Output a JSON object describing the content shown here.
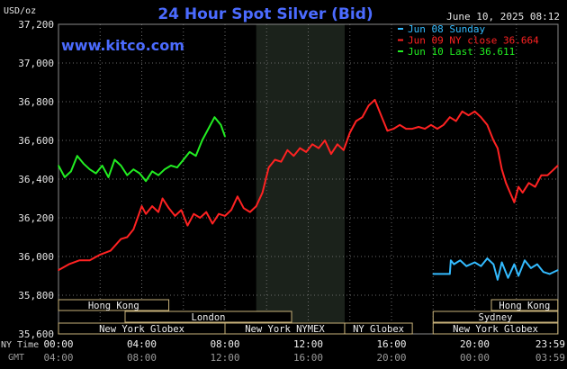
{
  "header": {
    "title": "24 Hour Spot Silver (Bid)",
    "watermark": "www.kitco.com",
    "timestamp": "June 10, 2025 08:12",
    "unit": "USD/oz"
  },
  "chart_data": {
    "type": "line",
    "title": "24 Hour Spot Silver (Bid)",
    "ylabel": "USD/oz",
    "ylim": [
      35.6,
      37.2
    ],
    "y_ticks": [
      "37,200",
      "37,000",
      "36,800",
      "36,600",
      "36,400",
      "36,200",
      "36,000",
      "35,800",
      "35,600"
    ],
    "y_tick_values": [
      37.2,
      37.0,
      36.8,
      36.6,
      36.4,
      36.2,
      36.0,
      35.8,
      35.6
    ],
    "xlim": [
      0,
      24
    ],
    "x_tick_hours": [
      0,
      4,
      8,
      12,
      16,
      20,
      24
    ],
    "x_ticks_ny": [
      "00:00",
      "04:00",
      "08:00",
      "12:00",
      "16:00",
      "20:00",
      "23:59"
    ],
    "x_ticks_gmt": [
      "04:00",
      "08:00",
      "12:00",
      "16:00",
      "20:00",
      "00:00",
      "03:59"
    ],
    "x_row_labels": {
      "ny": "NY Time",
      "gmt": "GMT"
    },
    "grid": true,
    "legend_position": "top-right",
    "shaded_hours": [
      9.5,
      13.75
    ],
    "series": [
      {
        "name": "Jun 08 Sunday",
        "color": "#33bbff",
        "x": [
          18.0,
          18.8,
          18.85,
          19.0,
          19.3,
          19.6,
          20.0,
          20.3,
          20.6,
          20.9,
          21.1,
          21.3,
          21.6,
          21.9,
          22.1,
          22.4,
          22.7,
          23.0,
          23.3,
          23.6,
          23.99
        ],
        "y": [
          35.91,
          35.91,
          35.98,
          35.96,
          35.98,
          35.95,
          35.97,
          35.95,
          35.99,
          35.96,
          35.88,
          35.97,
          35.89,
          35.96,
          35.9,
          35.98,
          35.94,
          35.96,
          35.92,
          35.91,
          35.93
        ]
      },
      {
        "name": "Jun 09 NY close 36.664",
        "color": "#ff2222",
        "x": [
          0.0,
          0.5,
          1.0,
          1.5,
          2.0,
          2.5,
          3.0,
          3.3,
          3.6,
          3.8,
          4.0,
          4.2,
          4.5,
          4.8,
          5.0,
          5.3,
          5.6,
          5.9,
          6.2,
          6.5,
          6.8,
          7.1,
          7.4,
          7.7,
          8.0,
          8.3,
          8.6,
          8.9,
          9.2,
          9.5,
          9.8,
          10.1,
          10.4,
          10.7,
          11.0,
          11.3,
          11.6,
          11.9,
          12.2,
          12.5,
          12.8,
          13.1,
          13.4,
          13.7,
          14.0,
          14.3,
          14.6,
          14.9,
          15.2,
          15.5,
          15.8,
          16.1,
          16.4,
          16.7,
          17.0,
          17.3,
          17.6,
          17.9,
          18.2,
          18.5,
          18.8,
          19.1,
          19.4,
          19.7,
          20.0,
          20.3,
          20.6,
          20.9,
          21.1,
          21.3,
          21.5,
          21.7,
          21.9,
          22.1,
          22.3,
          22.6,
          22.9,
          23.2,
          23.5,
          23.8,
          23.99
        ],
        "y": [
          35.93,
          35.96,
          35.98,
          35.98,
          36.01,
          36.03,
          36.09,
          36.1,
          36.14,
          36.2,
          36.26,
          36.22,
          36.26,
          36.23,
          36.3,
          36.25,
          36.21,
          36.24,
          36.16,
          36.22,
          36.2,
          36.23,
          36.17,
          36.22,
          36.21,
          36.24,
          36.31,
          36.25,
          36.23,
          36.26,
          36.33,
          36.46,
          36.5,
          36.49,
          36.55,
          36.52,
          36.56,
          36.54,
          36.58,
          36.56,
          36.6,
          36.53,
          36.58,
          36.55,
          36.64,
          36.7,
          36.72,
          36.78,
          36.81,
          36.73,
          36.65,
          36.66,
          36.68,
          36.66,
          36.66,
          36.67,
          36.66,
          36.68,
          36.66,
          36.68,
          36.72,
          36.7,
          36.75,
          36.73,
          36.75,
          36.72,
          36.68,
          36.6,
          36.56,
          36.45,
          36.38,
          36.33,
          36.28,
          36.36,
          36.33,
          36.38,
          36.36,
          36.42,
          36.42,
          36.45,
          36.47
        ]
      },
      {
        "name": "Jun 10 Last 36.611",
        "color": "#22ee22",
        "x": [
          0.0,
          0.3,
          0.6,
          0.9,
          1.2,
          1.5,
          1.8,
          2.1,
          2.4,
          2.7,
          3.0,
          3.3,
          3.6,
          3.9,
          4.2,
          4.5,
          4.8,
          5.1,
          5.4,
          5.7,
          6.0,
          6.3,
          6.6,
          6.9,
          7.2,
          7.5,
          7.8,
          8.0
        ],
        "y": [
          36.47,
          36.41,
          36.44,
          36.52,
          36.48,
          36.45,
          36.43,
          36.47,
          36.41,
          36.5,
          36.47,
          36.42,
          36.45,
          36.43,
          36.39,
          36.44,
          36.42,
          36.45,
          36.47,
          36.46,
          36.5,
          36.54,
          36.52,
          36.6,
          36.66,
          36.72,
          36.68,
          36.62
        ]
      }
    ],
    "sessions": [
      {
        "name": "Hong Kong",
        "row": 0,
        "start": 0.0,
        "end": 5.3
      },
      {
        "name": "Hong Kong",
        "row": 0,
        "start": 20.8,
        "end": 23.99
      },
      {
        "name": "London",
        "row": 1,
        "start": 3.2,
        "end": 11.2
      },
      {
        "name": "Sydney",
        "row": 1,
        "start": 18.0,
        "end": 23.99
      },
      {
        "name": "New York Globex",
        "row": 2,
        "start": 0.0,
        "end": 8.0
      },
      {
        "name": "New York NYMEX",
        "row": 2,
        "start": 8.0,
        "end": 13.75
      },
      {
        "name": "NY Globex",
        "row": 2,
        "start": 13.75,
        "end": 17.0
      },
      {
        "name": "New York Globex",
        "row": 2,
        "start": 18.0,
        "end": 23.99
      }
    ]
  }
}
